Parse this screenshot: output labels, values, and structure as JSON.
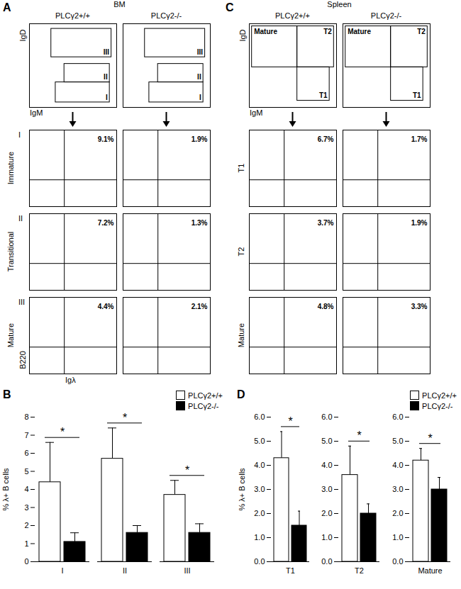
{
  "flow_panels": [
    {
      "label": "A",
      "tissue": "BM",
      "genotypes": [
        "PLCγ2+/+",
        "PLCγ2-/-"
      ],
      "gating": {
        "x_label": "IgM",
        "y_label": "IgD",
        "gates": [
          "I",
          "II",
          "III"
        ]
      },
      "subsets": [
        {
          "gate": "I",
          "row_label": "Immature",
          "percents": [
            "9.1%",
            "1.9%"
          ]
        },
        {
          "gate": "II",
          "row_label": "Transitional",
          "percents": [
            "7.2%",
            "1.3%"
          ]
        },
        {
          "gate": "III",
          "row_label": "Mature",
          "percents": [
            "4.4%",
            "2.1%"
          ]
        }
      ],
      "subset_axes": {
        "x_label": "Igλ",
        "y_label": "B220"
      }
    },
    {
      "label": "C",
      "tissue": "Spleen",
      "genotypes": [
        "PLCγ2+/+",
        "PLCγ2-/-"
      ],
      "gating": {
        "x_label": "IgM",
        "y_label": "IgD",
        "gates": [
          "Mature",
          "T2",
          "T1"
        ]
      },
      "subsets": [
        {
          "row_label": "T1",
          "percents": [
            "6.7%",
            "1.7%"
          ]
        },
        {
          "row_label": "T2",
          "percents": [
            "3.7%",
            "1.9%"
          ]
        },
        {
          "row_label": "Mature",
          "percents": [
            "4.8%",
            "3.3%"
          ]
        }
      ]
    }
  ],
  "chart_data": [
    {
      "label": "B",
      "type": "bar",
      "categories": [
        "I",
        "II",
        "III"
      ],
      "y_label": "% λ+ B cells",
      "ylim": [
        0,
        8
      ],
      "yticks": [
        0,
        1,
        2,
        3,
        4,
        5,
        6,
        7,
        8
      ],
      "legend": "top-right",
      "annotations": [
        "*",
        "*",
        "*"
      ],
      "series": [
        {
          "name": "PLCγ2+/+",
          "color": "#ffffff",
          "values": [
            4.4,
            5.7,
            3.7
          ],
          "errors": [
            2.2,
            1.7,
            0.8
          ]
        },
        {
          "name": "PLCγ2-/-",
          "color": "#000000",
          "values": [
            1.1,
            1.6,
            1.6
          ],
          "errors": [
            0.5,
            0.4,
            0.5
          ]
        }
      ]
    },
    {
      "label": "D",
      "type": "bar",
      "categories": [
        "T1",
        "T2",
        "Mature"
      ],
      "y_label": "% λ+ B cells",
      "ylim": [
        0,
        6
      ],
      "yticks": [
        0,
        1,
        2,
        3,
        4,
        5,
        6
      ],
      "legend": "top-right",
      "annotations": [
        "*",
        "*",
        "*"
      ],
      "series": [
        {
          "name": "PLCγ2+/+",
          "color": "#ffffff",
          "values": [
            4.3,
            3.6,
            4.2
          ],
          "errors": [
            1.1,
            1.2,
            0.5
          ]
        },
        {
          "name": "PLCγ2-/-",
          "color": "#000000",
          "values": [
            1.5,
            2.0,
            3.0
          ],
          "errors": [
            0.6,
            0.4,
            0.5
          ]
        }
      ]
    }
  ]
}
